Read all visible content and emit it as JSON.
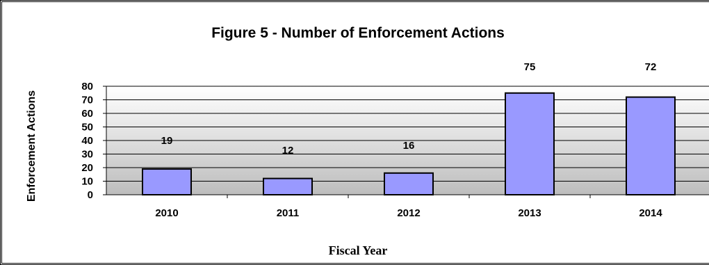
{
  "chart_data": {
    "type": "bar",
    "title": "Figure 5 - Number of Enforcement Actions",
    "xlabel": "Fiscal Year",
    "ylabel": "Enforcement Actions",
    "categories": [
      "2010",
      "2011",
      "2012",
      "2013",
      "2014"
    ],
    "values": [
      19,
      12,
      16,
      75,
      72
    ],
    "ylim": [
      0,
      80
    ],
    "yticks": [
      "0",
      "10",
      "20",
      "30",
      "40",
      "50",
      "60",
      "70",
      "80"
    ],
    "grid": true,
    "legend": "none",
    "colors": {
      "bar": "#9999ff",
      "bar_stroke": "#000000"
    }
  }
}
